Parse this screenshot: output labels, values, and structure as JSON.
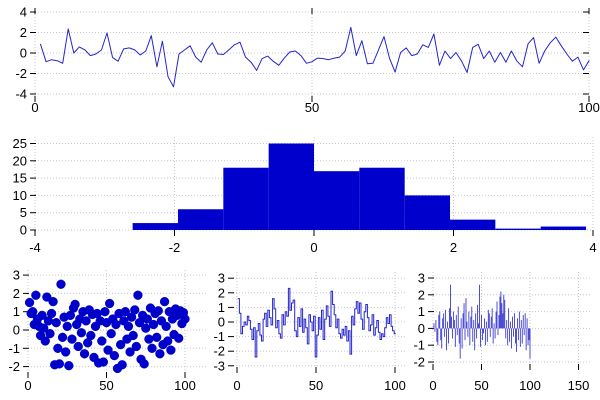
{
  "colors": {
    "background": "#ffffff",
    "marks_fill": "#0000cc",
    "line_stroke": "#2525cc",
    "grid": "#c6c6d6",
    "tick": "#000000",
    "text": "#000000"
  },
  "chart_data": [
    {
      "id": "noise-series",
      "type": "line",
      "x_start": 1,
      "x_step": 1,
      "values": [
        0.85,
        -0.85,
        -0.65,
        -0.75,
        -1.0,
        2.35,
        0.0,
        0.6,
        0.3,
        -0.25,
        -0.1,
        0.3,
        1.95,
        -0.45,
        -0.8,
        0.4,
        0.5,
        0.3,
        -0.2,
        0.2,
        1.7,
        -1.35,
        1.15,
        -2.3,
        -3.3,
        -0.1,
        0.3,
        0.7,
        -0.4,
        -0.9,
        0.3,
        1.0,
        -0.1,
        -0.15,
        0.3,
        0.8,
        1.05,
        -0.4,
        -0.9,
        -1.7,
        -0.55,
        -0.3,
        -0.8,
        -1.2,
        -0.5,
        0.1,
        0.2,
        -0.25,
        -1.0,
        -0.85,
        -0.5,
        -0.55,
        -0.65,
        -0.5,
        -0.4,
        0.2,
        2.5,
        -0.25,
        1.2,
        -1.05,
        -1.0,
        0.3,
        1.6,
        -0.55,
        -1.85,
        0.05,
        0.5,
        -0.25,
        -0.1,
        0.8,
        0.55,
        1.85,
        -1.2,
        0.2,
        -0.55,
        0.05,
        -0.8,
        -1.9,
        0.55,
        0.85,
        -0.55,
        0.2,
        -0.9,
        0.05,
        -0.9,
        0.2,
        -0.8,
        -1.35,
        0.9,
        1.5,
        -1.0,
        0.2,
        1.0,
        1.55,
        0.7,
        -0.1,
        -0.8,
        -0.4,
        -1.65,
        -0.75
      ],
      "xticks": [
        0,
        50,
        100
      ],
      "yticks": [
        -4,
        -2,
        0,
        2,
        4
      ],
      "xlim": [
        0,
        100
      ],
      "ylim": [
        -4.4,
        4.4
      ],
      "grid": true,
      "legend": false
    },
    {
      "id": "histogram",
      "type": "bar",
      "bin_start": -2.6,
      "bin_width": 0.65,
      "counts": [
        2,
        6,
        18,
        25,
        17,
        18,
        10,
        3,
        0,
        1
      ],
      "xticks": [
        -4,
        -2,
        0,
        2,
        4
      ],
      "yticks": [
        0,
        5,
        10,
        15,
        20,
        25
      ],
      "xlim": [
        -4,
        4
      ],
      "ylim": [
        0,
        27
      ],
      "grid": true,
      "legend": false
    },
    {
      "id": "scatter",
      "type": "scatter",
      "x_start": 1,
      "x_step": 1,
      "values": [
        1.5,
        0.9,
        1.0,
        0.3,
        1.9,
        0.6,
        0.2,
        -0.3,
        0.8,
        0.1,
        -0.6,
        1.8,
        0.5,
        -0.2,
        0.9,
        1.55,
        -1.9,
        0.4,
        -1.0,
        -1.85,
        2.5,
        -0.4,
        0.7,
        -1.2,
        0.2,
        -1.95,
        0.8,
        -0.5,
        1.2,
        1.4,
        0.3,
        -0.9,
        0.6,
        -0.15,
        1.0,
        -1.3,
        0.5,
        -0.7,
        1.1,
        -0.3,
        0.85,
        -1.5,
        0.2,
        0.9,
        -1.8,
        0.5,
        -0.6,
        -1.75,
        1.0,
        0.4,
        -1.1,
        1.45,
        -0.2,
        0.6,
        -1.4,
        0.3,
        -2.1,
        0.9,
        -0.8,
        -1.9,
        0.5,
        1.0,
        -0.5,
        0.2,
        -1.2,
        0.7,
        -0.3,
        1.1,
        -0.9,
        1.9,
        0.4,
        -1.6,
        0.8,
        -1.85,
        0.1,
        0.6,
        -0.5,
        1.2,
        -1.0,
        0.3,
        0.9,
        -0.4,
        1.05,
        -1.3,
        0.5,
        -0.8,
        1.55,
        0.2,
        -0.6,
        1.0,
        -1.1,
        0.6,
        -0.25,
        1.15,
        0.8,
        -0.45,
        1.05,
        0.35,
        0.95,
        0.6
      ],
      "xticks": [
        0,
        50,
        100
      ],
      "yticks": [
        -2,
        -1,
        0,
        1,
        2,
        3
      ],
      "xlim": [
        0,
        107
      ],
      "ylim": [
        -2.6,
        3.2
      ],
      "grid": true,
      "legend": false
    },
    {
      "id": "steps",
      "type": "step",
      "x_start": 1,
      "x_step": 1,
      "values": [
        1.6,
        0.6,
        -0.8,
        -0.3,
        0.0,
        -0.2,
        0.4,
        0.1,
        -0.5,
        -1.2,
        -0.4,
        -2.4,
        -0.6,
        -0.1,
        -0.9,
        -1.3,
        0.2,
        0.6,
        -0.3,
        0.8,
        0.3,
        -0.2,
        1.6,
        0.9,
        -0.4,
        0.1,
        -0.8,
        -1.1,
        0.5,
        -0.2,
        0.7,
        0.4,
        2.3,
        0.8,
        1.3,
        1.5,
        -0.6,
        -1.0,
        0.3,
        -0.3,
        0.9,
        -0.7,
        0.2,
        -0.4,
        -1.5,
        0.5,
        0.0,
        -0.6,
        0.4,
        -2.4,
        -0.9,
        0.3,
        -0.5,
        0.8,
        -1.2,
        0.2,
        1.1,
        0.4,
        -0.3,
        2.1,
        1.2,
        0.5,
        -0.4,
        0.2,
        -0.8,
        -1.1,
        -0.5,
        -0.9,
        -0.3,
        -1.3,
        -0.6,
        -2.2,
        0.4,
        -0.2,
        0.9,
        1.4,
        0.6,
        1.3,
        0.2,
        -0.5,
        0.7,
        1.2,
        0.3,
        -0.6,
        -0.2,
        0.5,
        -0.9,
        -0.4,
        0.1,
        -0.7,
        -1.2,
        -0.8,
        -1.0,
        -0.4,
        0.3,
        -0.1,
        0.5,
        -0.3,
        -0.6,
        -0.8
      ],
      "xticks": [
        0,
        50,
        100
      ],
      "yticks": [
        -3,
        -2,
        -1,
        0,
        1,
        2,
        3
      ],
      "xlim": [
        0,
        108
      ],
      "ylim": [
        -3.3,
        3.3
      ],
      "grid": true,
      "legend": false
    },
    {
      "id": "impulses",
      "type": "impulse",
      "x_start": 1,
      "x_step": 1,
      "values": [
        0.3,
        -0.2,
        0.5,
        -0.8,
        -1.0,
        0.8,
        1.0,
        -0.7,
        -1.2,
        0.6,
        0.9,
        -0.5,
        1.1,
        -1.3,
        0.4,
        -0.9,
        1.2,
        2.6,
        0.7,
        -0.6,
        1.0,
        0.5,
        -1.1,
        0.8,
        -0.4,
        1.3,
        -0.9,
        -1.8,
        0.6,
        -1.2,
        0.9,
        1.5,
        -0.7,
        1.8,
        0.4,
        -0.5,
        1.0,
        -1.0,
        0.7,
        1.3,
        -0.8,
        0.5,
        -1.3,
        0.9,
        -0.6,
        1.4,
        0.3,
        2.6,
        -1.1,
        0.8,
        -0.7,
        -0.3,
        0.6,
        -1.0,
        0.4,
        -0.8,
        1.1,
        0.9,
        -0.5,
        0.7,
        1.2,
        -0.9,
        0.3,
        -0.6,
        1.0,
        1.6,
        -0.4,
        0.8,
        1.9,
        2.2,
        1.5,
        0.9,
        2.0,
        1.7,
        -0.6,
        0.5,
        -1.0,
        1.2,
        -0.8,
        0.4,
        -1.2,
        0.7,
        -0.5,
        0.9,
        -0.9,
        -1.4,
        0.6,
        -0.7,
        1.0,
        -1.1,
        0.5,
        -0.9,
        0.8,
        -0.4,
        0.9,
        -1.3,
        0.6,
        -1.0,
        -0.7,
        -1.8
      ],
      "xticks": [
        0,
        50,
        100,
        150
      ],
      "yticks": [
        -2,
        -1,
        0,
        1,
        2,
        3
      ],
      "xlim": [
        0,
        164
      ],
      "ylim": [
        -2.2,
        3.3
      ],
      "grid": true,
      "legend": false
    }
  ]
}
